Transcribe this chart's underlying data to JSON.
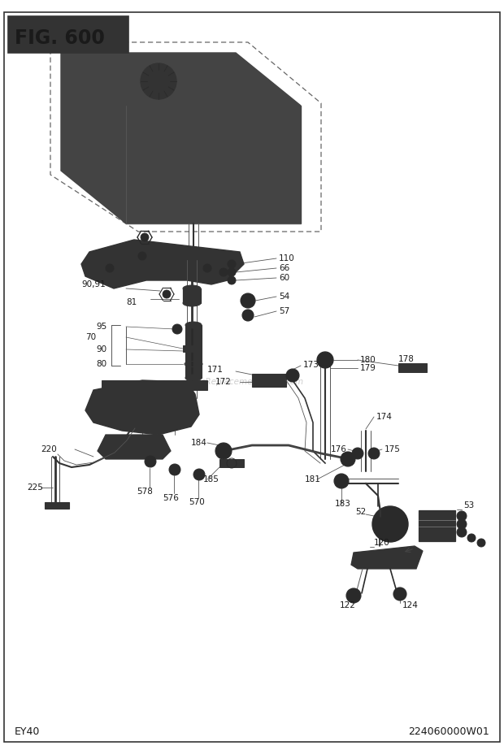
{
  "title": "FIG. 600",
  "bottom_left": "EY40",
  "bottom_right": "224060000W01",
  "bg_color": "#ffffff",
  "line_color": "#2a2a2a",
  "fig_width": 6.2,
  "fig_height": 9.23,
  "dpi": 100
}
